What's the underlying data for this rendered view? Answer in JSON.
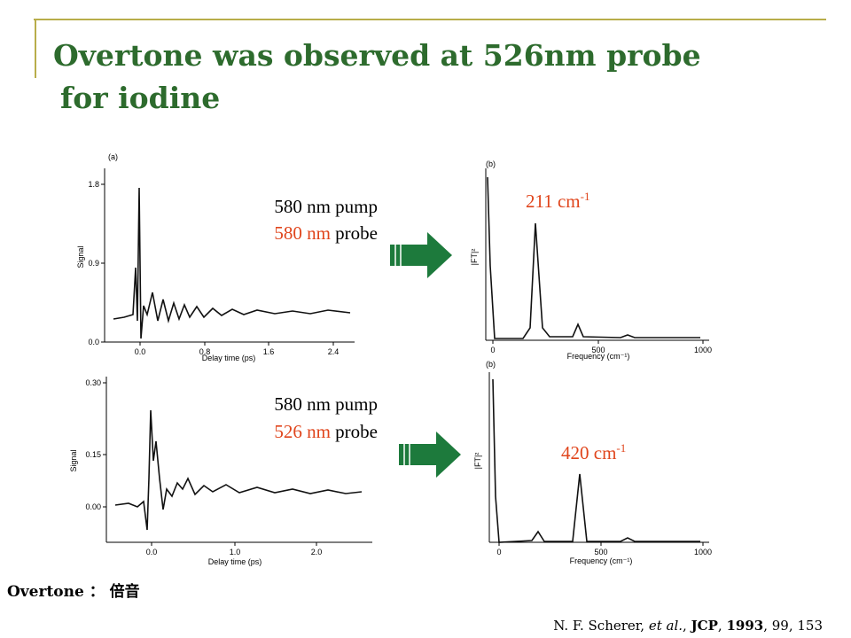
{
  "title": {
    "lines": [
      "Overtone was observed at 526nm probe",
      "for iodine"
    ]
  },
  "figures": [
    {
      "panel": "(a)",
      "ylabel": "Signal",
      "xlabel": "Delay time (ps)",
      "xticks": [
        "0.0",
        "0.8",
        "1.6",
        "2.4"
      ],
      "yticks": [
        "0.0",
        "0.9",
        "1.8"
      ]
    },
    {
      "panel": "(b)",
      "ylabel": "|FT|²",
      "xlabel": "Frequency (cm⁻¹)",
      "xticks": [
        "0",
        "500",
        "1000"
      ],
      "yticks": []
    },
    {
      "panel": "",
      "ylabel": "Signal",
      "xlabel": "Delay time (ps)",
      "xticks": [
        "0.0",
        "1.0",
        "2.0"
      ],
      "yticks": [
        "0.00",
        "0.15",
        "0.30"
      ]
    },
    {
      "panel": "(b)",
      "ylabel": "|FT|²",
      "xlabel": "Frequency (cm⁻¹)",
      "xticks": [
        "0",
        "500",
        "1000"
      ],
      "yticks": []
    }
  ],
  "conditions": [
    {
      "pump": "580 nm pump",
      "probe": "580 nm",
      "probe_word": "probe"
    },
    {
      "pump": "580 nm pump",
      "probe": "526 nm",
      "probe_word": "probe"
    }
  ],
  "peaks": [
    {
      "text": "211 cm",
      "sup": "-1"
    },
    {
      "text": "420 cm",
      "sup": "-1"
    }
  ],
  "note": "Overtone ： 倍音",
  "citation": {
    "authors": "N. F. Scherer, ",
    "etal": "et al.",
    "sep1": ", ",
    "journal": "JCP",
    "sep2": ", ",
    "year": "1993",
    "rest": ", 99, 153"
  }
}
